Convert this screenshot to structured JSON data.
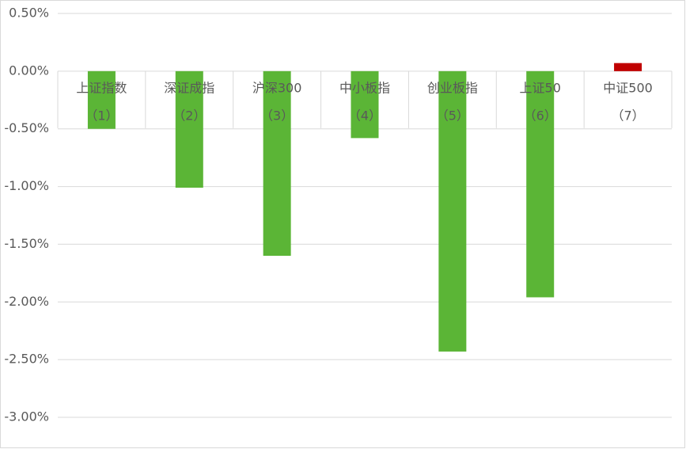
{
  "chart_data": {
    "type": "bar",
    "categories": [
      "上证指数",
      "深证成指",
      "沪深300",
      "中小板指",
      "创业板指",
      "上证50",
      "中证500"
    ],
    "category_numbers": [
      "（1）",
      "（2）",
      "（3）",
      "（4）",
      "（5）",
      "（6）",
      "（7）"
    ],
    "values": [
      -0.5,
      -1.01,
      -1.6,
      -0.58,
      -2.43,
      -1.96,
      0.07
    ],
    "colors": [
      "#5bb536",
      "#5bb536",
      "#5bb536",
      "#5bb536",
      "#5bb536",
      "#5bb536",
      "#c00000"
    ],
    "ylim": [
      -3,
      0.5
    ],
    "yticks": [
      {
        "value": 0.5,
        "label": "0.50%"
      },
      {
        "value": 0,
        "label": "0.00%"
      },
      {
        "value": -0.5,
        "label": "-0.50%"
      },
      {
        "value": -1,
        "label": "-1.00%"
      },
      {
        "value": -1.5,
        "label": "-1.50%"
      },
      {
        "value": -2,
        "label": "-2.00%"
      },
      {
        "value": -2.5,
        "label": "-2.50%"
      },
      {
        "value": -3,
        "label": "-3.00%"
      }
    ],
    "grid": true
  }
}
